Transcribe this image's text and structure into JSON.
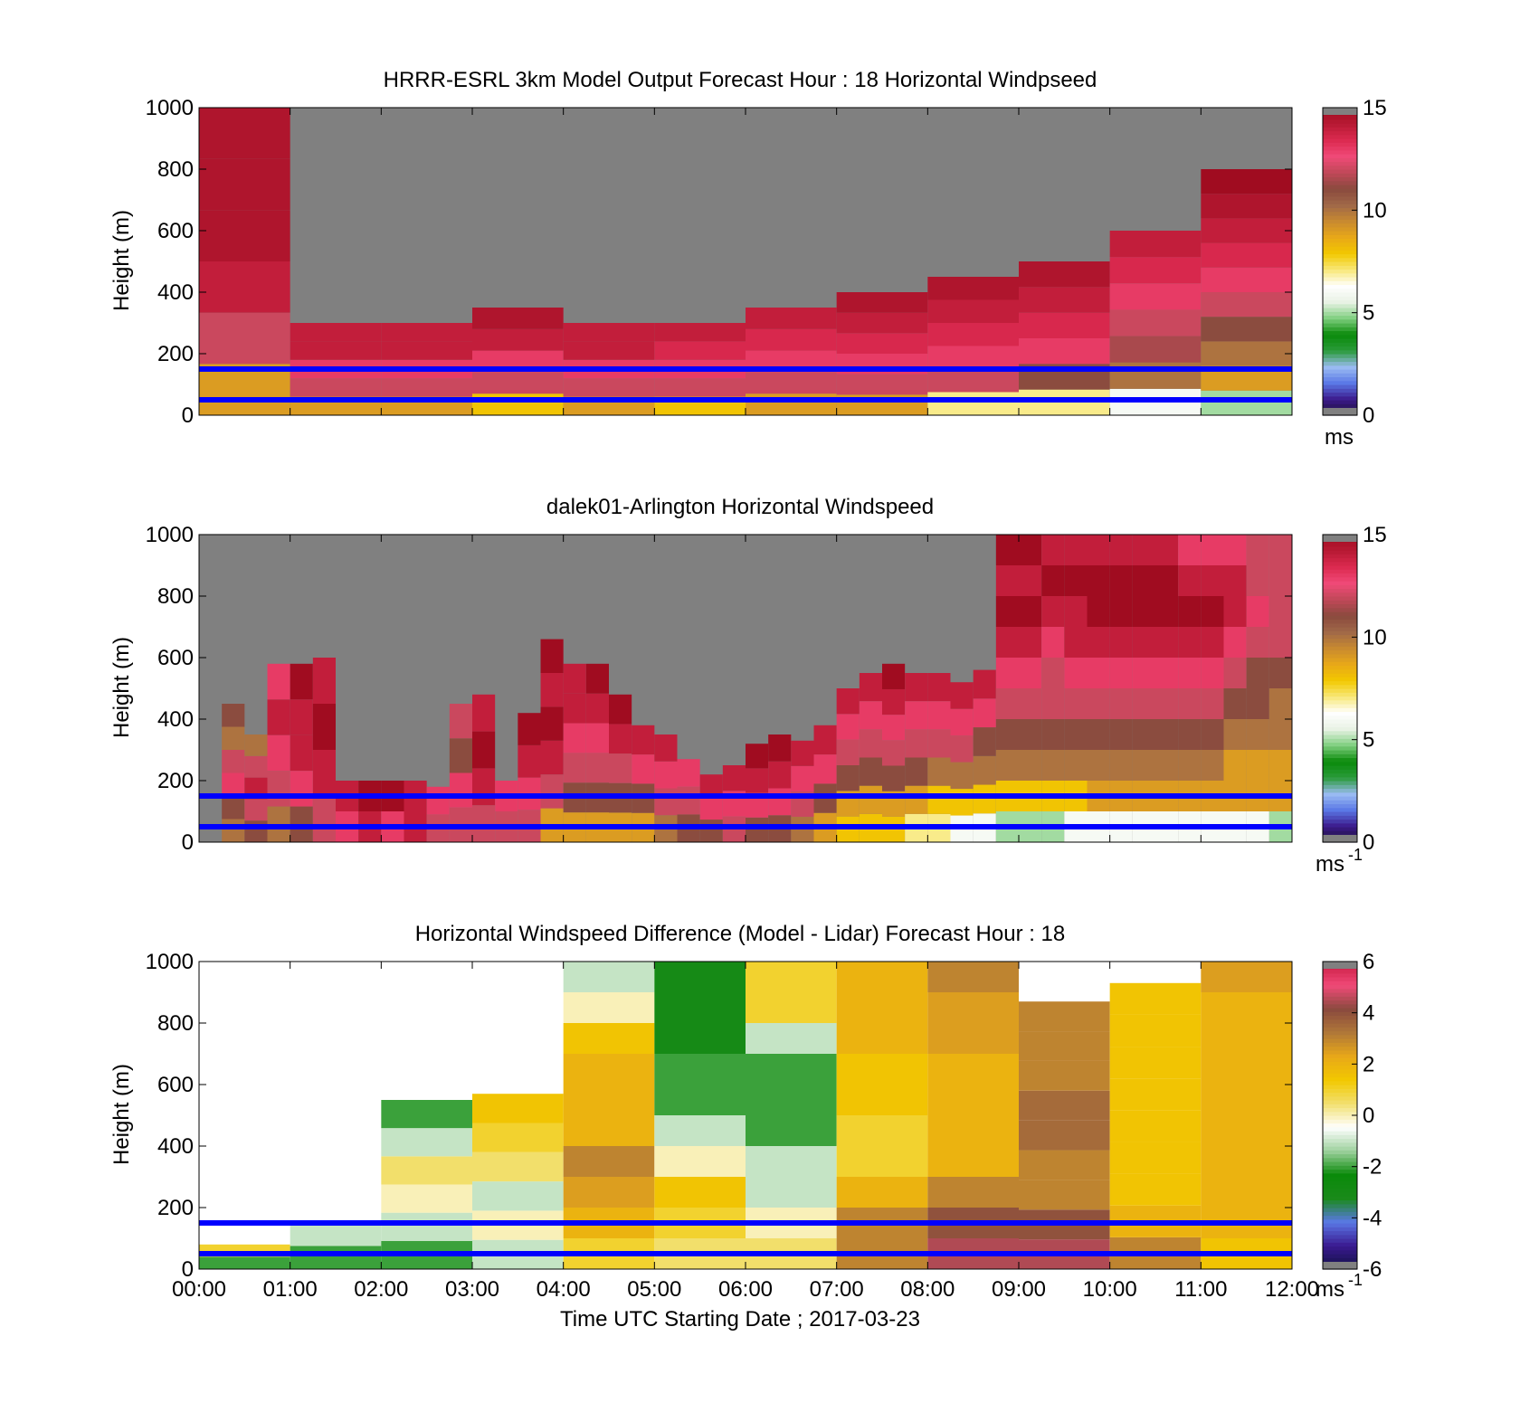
{
  "colors": {
    "background": "#ffffff",
    "reference_lines": "#0000ff",
    "no_data": "#808080",
    "speed_colormap": [
      "#1a1030",
      "#3c1a8c",
      "#5a78e6",
      "#9bbcf2",
      "#2a9a3a",
      "#0a8a0a",
      "#7fcf7f",
      "#e8f2e4",
      "#ffffff",
      "#f8e878",
      "#f2c800",
      "#e8a818",
      "#c88a30",
      "#a06848",
      "#8a4a3e",
      "#c04858",
      "#f04a78",
      "#dc2a50",
      "#b81a34",
      "#a00c20"
    ],
    "diff_colormap": [
      "#101040",
      "#3a1a90",
      "#5a78e6",
      "#1a8a1a",
      "#0a8a0a",
      "#9cd09c",
      "#ffffff",
      "#f2e070",
      "#f2c800",
      "#e8a818",
      "#b07838",
      "#8a4a3e",
      "#f04a78",
      "#c81a40"
    ]
  },
  "chart_data": [
    {
      "type": "heatmap",
      "title": "HRRR-ESRL 3km Model Output   Forecast Hour : 18 Horizontal Windpseed",
      "xlabel": "",
      "ylabel": "Height (m)",
      "ylim": [
        0,
        1000
      ],
      "yticks": [
        "0",
        "200",
        "400",
        "600",
        "800",
        "1000"
      ],
      "x_range": [
        "00:00",
        "12:00"
      ],
      "reference_lines_m": [
        50,
        150
      ],
      "colorbar": {
        "range": [
          0,
          15
        ],
        "ticks": [
          "0",
          "5",
          "10",
          "15"
        ],
        "unit": "ms",
        "unit_exponent": ""
      },
      "columns": [
        {
          "x": "00:00",
          "top_m": 1000,
          "values": [
            9,
            12,
            14,
            14.5,
            14.5,
            14.5
          ]
        },
        {
          "x": "01:00",
          "top_m": 300,
          "values": [
            9,
            12,
            13,
            14,
            14
          ]
        },
        {
          "x": "02:00",
          "top_m": 300,
          "values": [
            9,
            12,
            13,
            14,
            14
          ]
        },
        {
          "x": "03:00",
          "top_m": 350,
          "values": [
            8,
            12,
            13,
            14,
            14.5
          ]
        },
        {
          "x": "04:00",
          "top_m": 300,
          "values": [
            9,
            12,
            13,
            14,
            14
          ]
        },
        {
          "x": "05:00",
          "top_m": 300,
          "values": [
            8,
            12,
            13,
            13.5,
            14
          ]
        },
        {
          "x": "06:00",
          "top_m": 350,
          "values": [
            9,
            12,
            13,
            13.5,
            14
          ]
        },
        {
          "x": "07:00",
          "top_m": 400,
          "values": [
            9,
            12,
            13,
            13.5,
            14,
            14.5
          ]
        },
        {
          "x": "08:00",
          "top_m": 450,
          "values": [
            7,
            12,
            13,
            13.5,
            14,
            14.5
          ]
        },
        {
          "x": "09:00",
          "top_m": 500,
          "values": [
            7,
            11,
            13,
            13.5,
            14,
            14.5
          ]
        },
        {
          "x": "10:00",
          "top_m": 600,
          "values": [
            6,
            10,
            11.5,
            12,
            13,
            13.5,
            14
          ]
        },
        {
          "x": "11:00",
          "top_m": 800,
          "values": [
            5,
            9,
            10,
            11,
            12,
            13,
            13.5,
            14,
            14.5,
            15
          ]
        }
      ]
    },
    {
      "type": "heatmap",
      "title": "dalek01-Arlington  Horizontal Windspeed",
      "xlabel": "",
      "ylabel": "Height (m)",
      "ylim": [
        0,
        1000
      ],
      "yticks": [
        "0",
        "200",
        "400",
        "600",
        "800",
        "1000"
      ],
      "x_range": [
        "00:00",
        "12:00"
      ],
      "reference_lines_m": [
        50,
        150
      ],
      "colorbar": {
        "range": [
          0,
          15
        ],
        "ticks": [
          "0",
          "5",
          "10",
          "15"
        ],
        "unit": "ms",
        "unit_exponent": "-1"
      },
      "columns": [
        {
          "x": "00:15",
          "top_m": 450,
          "values": [
            10,
            11,
            13,
            12,
            10,
            11
          ]
        },
        {
          "x": "00:30",
          "top_m": 350,
          "values": [
            11,
            12,
            14,
            12,
            10
          ]
        },
        {
          "x": "00:45",
          "top_m": 580,
          "values": [
            10,
            12,
            13,
            14,
            13
          ]
        },
        {
          "x": "01:00",
          "top_m": 580,
          "values": [
            11,
            13,
            14,
            14,
            15
          ]
        },
        {
          "x": "01:15",
          "top_m": 600,
          "values": [
            12,
            14,
            15,
            14
          ]
        },
        {
          "x": "01:30",
          "top_m": 200,
          "values": [
            13,
            14
          ]
        },
        {
          "x": "01:45",
          "top_m": 200,
          "values": [
            14,
            15
          ]
        },
        {
          "x": "02:00",
          "top_m": 200,
          "values": [
            13,
            15
          ]
        },
        {
          "x": "02:15",
          "top_m": 200,
          "values": [
            14,
            14
          ]
        },
        {
          "x": "02:30",
          "top_m": 180,
          "values": [
            12,
            13
          ]
        },
        {
          "x": "02:45",
          "top_m": 450,
          "values": [
            12,
            13,
            11,
            12
          ]
        },
        {
          "x": "03:00",
          "top_m": 480,
          "values": [
            12,
            14,
            15,
            14
          ]
        },
        {
          "x": "03:15",
          "top_m": 200,
          "values": [
            12,
            13
          ]
        },
        {
          "x": "03:30",
          "top_m": 420,
          "values": [
            12,
            13,
            14,
            15
          ]
        },
        {
          "x": "03:45",
          "top_m": 660,
          "values": [
            9,
            12,
            14,
            15,
            14,
            15
          ]
        },
        {
          "x": "04:00",
          "top_m": 580,
          "values": [
            9,
            11,
            12,
            13,
            14,
            14
          ]
        },
        {
          "x": "04:15",
          "top_m": 580,
          "values": [
            9,
            11,
            12,
            13,
            14,
            15
          ]
        },
        {
          "x": "04:30",
          "top_m": 480,
          "values": [
            9,
            11,
            12,
            14,
            15
          ]
        },
        {
          "x": "04:45",
          "top_m": 380,
          "values": [
            9,
            11,
            13,
            14
          ]
        },
        {
          "x": "05:00",
          "top_m": 350,
          "values": [
            10,
            12,
            13,
            14
          ]
        },
        {
          "x": "05:15",
          "top_m": 270,
          "values": [
            11,
            12,
            13
          ]
        },
        {
          "x": "05:30",
          "top_m": 220,
          "values": [
            11,
            13,
            14
          ]
        },
        {
          "x": "05:45",
          "top_m": 250,
          "values": [
            12,
            13,
            14
          ]
        },
        {
          "x": "06:00",
          "top_m": 320,
          "values": [
            11,
            13,
            14,
            15
          ]
        },
        {
          "x": "06:15",
          "top_m": 350,
          "values": [
            11,
            13,
            14,
            15
          ]
        },
        {
          "x": "06:30",
          "top_m": 330,
          "values": [
            10,
            12,
            13,
            14
          ]
        },
        {
          "x": "06:45",
          "top_m": 380,
          "values": [
            9,
            11,
            13,
            14
          ]
        },
        {
          "x": "07:00",
          "top_m": 500,
          "values": [
            8,
            9,
            11,
            12,
            13,
            14
          ]
        },
        {
          "x": "07:15",
          "top_m": 550,
          "values": [
            8,
            9,
            11,
            12,
            13,
            14
          ]
        },
        {
          "x": "07:30",
          "top_m": 580,
          "values": [
            8,
            9,
            11,
            12,
            13,
            14,
            15
          ]
        },
        {
          "x": "07:45",
          "top_m": 550,
          "values": [
            7,
            9,
            11,
            12,
            13,
            14
          ]
        },
        {
          "x": "08:00",
          "top_m": 550,
          "values": [
            7,
            8,
            10,
            12,
            13,
            14
          ]
        },
        {
          "x": "08:15",
          "top_m": 520,
          "values": [
            6,
            8,
            10,
            12,
            13,
            14
          ]
        },
        {
          "x": "08:30",
          "top_m": 560,
          "values": [
            6,
            8,
            10,
            11,
            13,
            14
          ]
        },
        {
          "x": "08:45",
          "top_m": 1000,
          "values": [
            5,
            8,
            10,
            11,
            12,
            13,
            14,
            15,
            14,
            15
          ]
        },
        {
          "x": "09:00",
          "top_m": 1000,
          "values": [
            5,
            8,
            10,
            11,
            12,
            13,
            14,
            15,
            14,
            15
          ]
        },
        {
          "x": "09:15",
          "top_m": 1000,
          "values": [
            5,
            8,
            10,
            11,
            12,
            12,
            13,
            14,
            15,
            14
          ]
        },
        {
          "x": "09:30",
          "top_m": 1000,
          "values": [
            6,
            8,
            10,
            11,
            12,
            13,
            14,
            14,
            15,
            14
          ]
        },
        {
          "x": "09:45",
          "top_m": 1000,
          "values": [
            6,
            9,
            10,
            11,
            12,
            13,
            14,
            15,
            15,
            14
          ]
        },
        {
          "x": "10:00",
          "top_m": 1000,
          "values": [
            6,
            9,
            10,
            11,
            12,
            13,
            14,
            15,
            15,
            14
          ]
        },
        {
          "x": "10:15",
          "top_m": 1000,
          "values": [
            6,
            9,
            10,
            11,
            12,
            13,
            14,
            15,
            15,
            14
          ]
        },
        {
          "x": "10:30",
          "top_m": 1000,
          "values": [
            6,
            9,
            10,
            11,
            12,
            13,
            14,
            15,
            15,
            14
          ]
        },
        {
          "x": "10:45",
          "top_m": 1000,
          "values": [
            6,
            9,
            10,
            11,
            12,
            13,
            14,
            15,
            14,
            13
          ]
        },
        {
          "x": "11:00",
          "top_m": 1000,
          "values": [
            6,
            9,
            10,
            11,
            12,
            13,
            14,
            15,
            14,
            13
          ]
        },
        {
          "x": "11:15",
          "top_m": 1000,
          "values": [
            6,
            9,
            9,
            10,
            11,
            12,
            13,
            14,
            14,
            13
          ]
        },
        {
          "x": "11:30",
          "top_m": 1000,
          "values": [
            6,
            9,
            9,
            10,
            11,
            11,
            12,
            13,
            12,
            12
          ]
        },
        {
          "x": "11:45",
          "top_m": 1000,
          "values": [
            5,
            9,
            9,
            10,
            10,
            11,
            12,
            12,
            12,
            12
          ]
        }
      ]
    },
    {
      "type": "heatmap",
      "title": "Horizontal Windspeed Difference (Model - Lidar) Forecast Hour : 18",
      "xlabel": "Time UTC  Starting Date ; 2017-03-23",
      "ylabel": "Height (m)",
      "ylim": [
        0,
        1000
      ],
      "yticks": [
        "0",
        "200",
        "400",
        "600",
        "800",
        "1000"
      ],
      "xticks": [
        "00:00",
        "01:00",
        "02:00",
        "03:00",
        "04:00",
        "05:00",
        "06:00",
        "07:00",
        "08:00",
        "09:00",
        "10:00",
        "11:00",
        "12:00"
      ],
      "x_range": [
        "00:00",
        "12:00"
      ],
      "reference_lines_m": [
        50,
        150
      ],
      "colorbar": {
        "range": [
          -6,
          6
        ],
        "ticks": [
          "-6",
          "-4",
          "-2",
          "0",
          "2",
          "4",
          "6"
        ],
        "unit": "ms",
        "unit_exponent": "-1"
      },
      "columns": [
        {
          "x": "00:00",
          "top_m": 80,
          "values": [
            -2,
            1
          ]
        },
        {
          "x": "01:00",
          "top_m": 150,
          "values": [
            -2,
            -1
          ]
        },
        {
          "x": "02:00",
          "top_m": 550,
          "values": [
            -2,
            -1,
            0,
            0.5,
            -1,
            -2
          ]
        },
        {
          "x": "03:00",
          "top_m": 570,
          "values": [
            -1,
            0,
            -1,
            0.5,
            1,
            1.5
          ]
        },
        {
          "x": "04:00",
          "top_m": 1000,
          "values": [
            1,
            2,
            2.5,
            3,
            2,
            2,
            2,
            1.5,
            0,
            -1
          ]
        },
        {
          "x": "05:00",
          "top_m": 1000,
          "values": [
            0.5,
            1,
            1.5,
            0,
            -1,
            -2,
            -2,
            -3,
            -3,
            -3
          ]
        },
        {
          "x": "06:00",
          "top_m": 1000,
          "values": [
            0.5,
            0,
            -1,
            -1,
            -2,
            -2,
            -2,
            -1,
            1,
            1
          ]
        },
        {
          "x": "07:00",
          "top_m": 1000,
          "values": [
            3,
            3,
            2,
            1,
            1,
            1.5,
            1.5,
            2,
            2,
            2
          ]
        },
        {
          "x": "08:00",
          "top_m": 1000,
          "values": [
            4.5,
            4,
            3,
            2,
            2,
            2,
            2,
            2.5,
            2.5,
            3
          ]
        },
        {
          "x": "09:00",
          "top_m": 870,
          "values": [
            4.5,
            4,
            3,
            3,
            3.5,
            3.5,
            3,
            3,
            3
          ]
        },
        {
          "x": "10:00",
          "top_m": 930,
          "values": [
            3,
            2,
            1.5,
            1.5,
            1.5,
            1.5,
            1.5,
            1.5,
            1.5
          ]
        },
        {
          "x": "11:00",
          "top_m": 1000,
          "values": [
            1.5,
            2,
            2,
            2,
            2,
            2,
            2,
            2,
            2,
            2.5
          ]
        }
      ]
    }
  ]
}
